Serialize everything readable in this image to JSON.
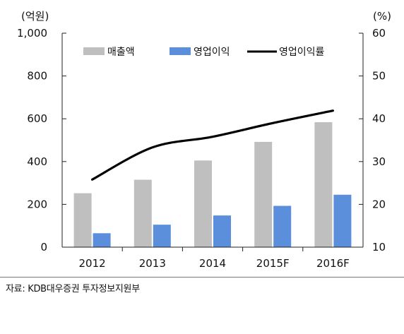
{
  "chart_data": {
    "type": "bar",
    "categories": [
      "2012",
      "2013",
      "2014",
      "2015F",
      "2016F"
    ],
    "series": [
      {
        "name": "매출액",
        "type": "bar",
        "axis": "left",
        "color": "#bfbfbf",
        "values": [
          252,
          315,
          405,
          492,
          584
        ]
      },
      {
        "name": "영업이익",
        "type": "bar",
        "axis": "left",
        "color": "#5b8fdc",
        "values": [
          65,
          105,
          148,
          193,
          245
        ]
      },
      {
        "name": "영업이익률",
        "type": "line",
        "axis": "right",
        "color": "#000000",
        "values": [
          25.8,
          33.3,
          35.8,
          39.0,
          41.9
        ]
      }
    ],
    "y_left": {
      "unit_label": "(억원)",
      "ylim": [
        0,
        1000
      ],
      "ticks": [
        0,
        200,
        400,
        600,
        800,
        1000
      ],
      "tick_labels": [
        "0",
        "200",
        "400",
        "600",
        "800",
        "1,000"
      ]
    },
    "y_right": {
      "unit_label": "(%)",
      "ylim": [
        10,
        60
      ],
      "ticks": [
        10,
        20,
        30,
        40,
        50,
        60
      ],
      "tick_labels": [
        "10",
        "20",
        "30",
        "40",
        "50",
        "60"
      ]
    },
    "grid": false,
    "legend_position": "top"
  },
  "source_text": "자료: KDB대우증권 투자정보지원부"
}
